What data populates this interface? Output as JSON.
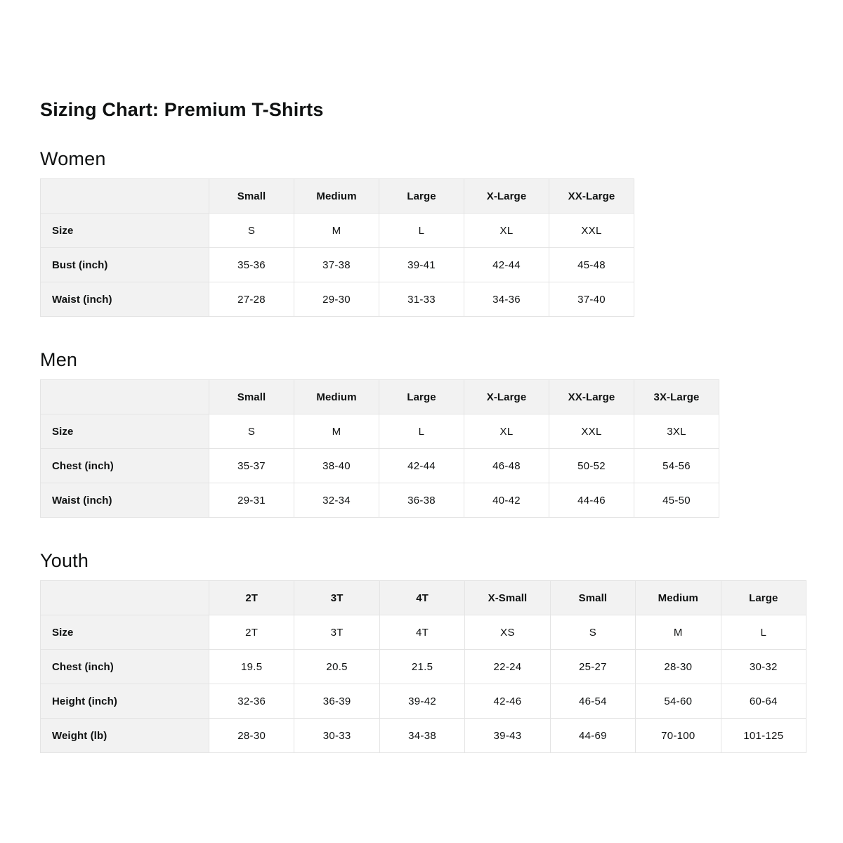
{
  "page": {
    "title": "Sizing Chart: Premium T-Shirts"
  },
  "colors": {
    "background": "#ffffff",
    "text": "#0f1111",
    "border": "#e4e4e4",
    "cell_gray": "#f2f2f2"
  },
  "sections": [
    {
      "heading": "Women",
      "table": {
        "column_headers": [
          "",
          "Small",
          "Medium",
          "Large",
          "X-Large",
          "XX-Large"
        ],
        "rows": [
          {
            "label": "Size",
            "values": [
              "S",
              "M",
              "L",
              "XL",
              "XXL"
            ]
          },
          {
            "label": "Bust (inch)",
            "values": [
              "35-36",
              "37-38",
              "39-41",
              "42-44",
              "45-48"
            ]
          },
          {
            "label": "Waist (inch)",
            "values": [
              "27-28",
              "29-30",
              "31-33",
              "34-36",
              "37-40"
            ]
          }
        ]
      }
    },
    {
      "heading": "Men",
      "table": {
        "column_headers": [
          "",
          "Small",
          "Medium",
          "Large",
          "X-Large",
          "XX-Large",
          "3X-Large"
        ],
        "rows": [
          {
            "label": "Size",
            "values": [
              "S",
              "M",
              "L",
              "XL",
              "XXL",
              "3XL"
            ]
          },
          {
            "label": "Chest (inch)",
            "values": [
              "35-37",
              "38-40",
              "42-44",
              "46-48",
              "50-52",
              "54-56"
            ]
          },
          {
            "label": "Waist (inch)",
            "values": [
              "29-31",
              "32-34",
              "36-38",
              "40-42",
              "44-46",
              "45-50"
            ]
          }
        ]
      }
    },
    {
      "heading": "Youth",
      "table": {
        "column_headers": [
          "",
          "2T",
          "3T",
          "4T",
          "X-Small",
          "Small",
          "Medium",
          "Large"
        ],
        "rows": [
          {
            "label": "Size",
            "values": [
              "2T",
              "3T",
              "4T",
              "XS",
              "S",
              "M",
              "L"
            ]
          },
          {
            "label": "Chest (inch)",
            "values": [
              "19.5",
              "20.5",
              "21.5",
              "22-24",
              "25-27",
              "28-30",
              "30-32"
            ]
          },
          {
            "label": "Height (inch)",
            "values": [
              "32-36",
              "36-39",
              "39-42",
              "42-46",
              "46-54",
              "54-60",
              "60-64"
            ]
          },
          {
            "label": "Weight (lb)",
            "values": [
              "28-30",
              "30-33",
              "34-38",
              "39-43",
              "44-69",
              "70-100",
              "101-125"
            ]
          }
        ]
      }
    }
  ]
}
